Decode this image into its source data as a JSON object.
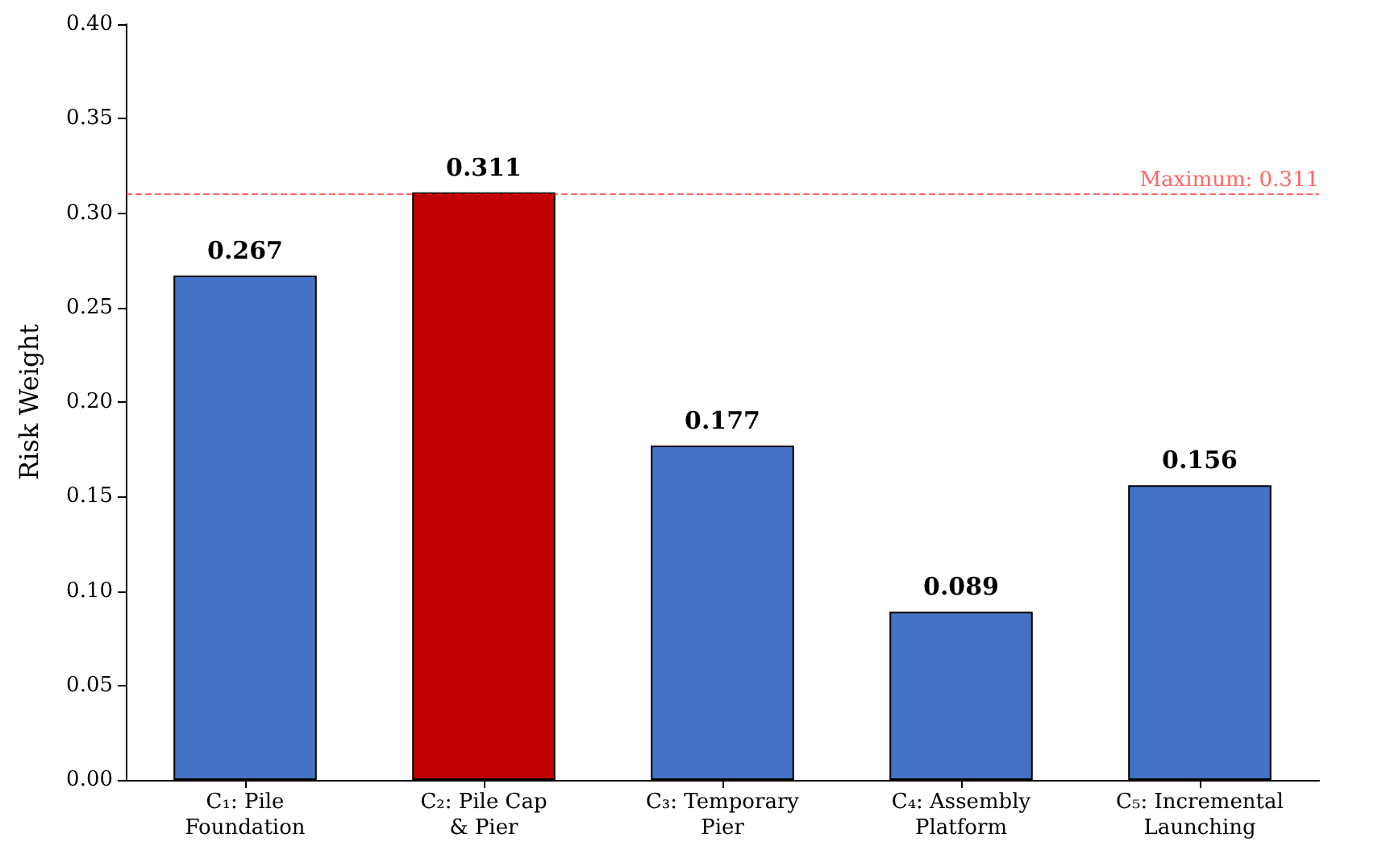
{
  "chart_data": {
    "type": "bar",
    "ylabel": "Risk Weight",
    "categories": [
      "C₁: Pile\nFoundation",
      "C₂: Pile Cap\n& Pier",
      "C₃: Temporary\nPier",
      "C₄: Assembly\nPlatform",
      "C₅: Incremental\nLaunching"
    ],
    "values": [
      0.267,
      0.311,
      0.177,
      0.089,
      0.156
    ],
    "colors": [
      "#4472c4",
      "#c00000",
      "#4472c4",
      "#4472c4",
      "#4472c4"
    ],
    "ylim": [
      0,
      0.4
    ],
    "yticks": [
      {
        "value": 0,
        "label": "0.00"
      },
      0.05,
      {
        "value": 0.1,
        "label": "0.10"
      },
      0.15,
      {
        "value": 0.2,
        "label": "0.20"
      },
      0.25,
      {
        "value": 0.3,
        "label": "0.30"
      },
      0.35,
      {
        "value": 0.4,
        "label": "0.40"
      }
    ],
    "data_labels": true,
    "grid": false,
    "ref_lines": [
      {
        "axis": "y",
        "value": 0.311,
        "label": "Maximum: 0.311",
        "color": "#ff0000",
        "line_style": "dashed"
      }
    ]
  }
}
